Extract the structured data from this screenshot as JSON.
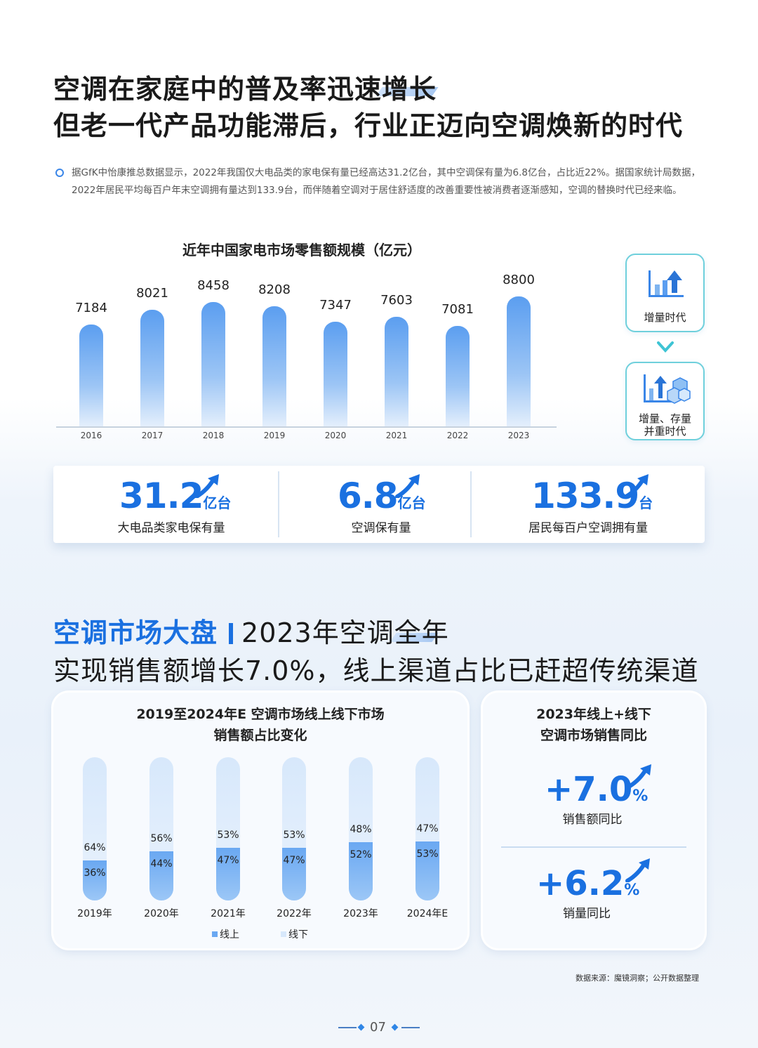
{
  "heading1": {
    "line1": "空调在家庭中的普及率迅速增长",
    "line2": "但老一代产品功能滞后，行业正迈向空调焕新的时代"
  },
  "intro": "据GfK中怡康推总数据显示，2022年我国仅大电品类的家电保有量已经高达31.2亿台，其中空调保有量为6.8亿台，占比近22%。据国家统计局数据，2022年居民平均每百户年末空调拥有量达到133.9台，而伴随着空调对于居住舒适度的改善重要性被消费者逐渐感知，空调的替换时代已经来临。",
  "side_cards": {
    "card1_label": "增量时代",
    "card2_label_line1": "增量、存量",
    "card2_label_line2": "并重时代"
  },
  "stats": [
    {
      "num": "31.2",
      "unit": "亿台",
      "label": "大电品类家电保有量"
    },
    {
      "num": "6.8",
      "unit": "亿台",
      "label": "空调保有量"
    },
    {
      "num": "133.9",
      "unit": "台",
      "label": "居民每百户空调拥有量"
    }
  ],
  "heading2": {
    "part_blue": "空调市场大盘",
    "part_dark": "2023年空调全年",
    "line2": "实现销售额增长7.0%，线上渠道占比已赶超传统渠道"
  },
  "panel_right": {
    "title_line1": "2023年线上+线下",
    "title_line2": "空调市场销售同比",
    "metric1_num": "+7.0",
    "metric1_pct": "%",
    "metric1_label": "销售额同比",
    "metric2_num": "+6.2",
    "metric2_pct": "%",
    "metric2_label": "销量同比"
  },
  "source": "数据来源：魔镜洞察；公开数据整理",
  "page_number": "07",
  "colors": {
    "accent": "#1a70e0",
    "bar_light": "#e4effc",
    "teal_border": "#6fd0dc"
  },
  "chart_data": [
    {
      "type": "bar",
      "title": "近年中国家电市场零售额规模（亿元）",
      "categories": [
        "2016",
        "2017",
        "2018",
        "2019",
        "2020",
        "2021",
        "2022",
        "2023"
      ],
      "values": [
        7184,
        8021,
        8458,
        8208,
        7347,
        7603,
        7081,
        8800
      ],
      "value_labels": [
        "7184",
        "8021",
        "8458",
        "8208",
        "7347",
        "7603",
        "7081",
        "8800"
      ]
    },
    {
      "type": "bar",
      "stacked": true,
      "title_line1": "2019至2024年E 空调市场线上线下市场",
      "title_line2": "销售额占比变化",
      "categories": [
        "2019年",
        "2020年",
        "2021年",
        "2022年",
        "2023年",
        "2024年E"
      ],
      "series": [
        {
          "name": "线上",
          "values": [
            36,
            44,
            47,
            47,
            52,
            53
          ],
          "labels": [
            "36%",
            "44%",
            "47%",
            "47%",
            "52%",
            "53%"
          ]
        },
        {
          "name": "线下",
          "values": [
            64,
            56,
            53,
            53,
            48,
            47
          ],
          "labels": [
            "64%",
            "56%",
            "53%",
            "53%",
            "48%",
            "47%"
          ]
        }
      ]
    }
  ]
}
